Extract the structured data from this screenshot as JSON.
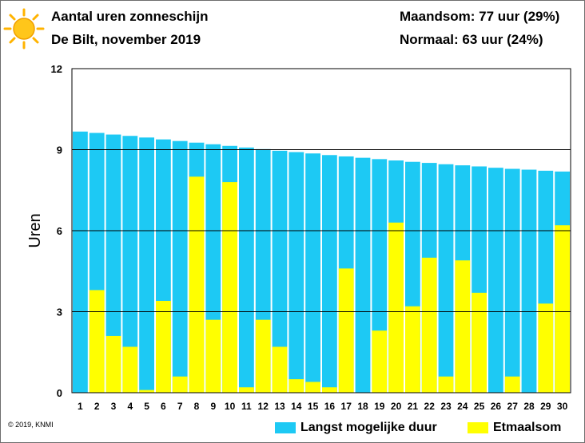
{
  "header": {
    "title": "Aantal uren zonneschijn",
    "subtitle": "De Bilt, november 2019",
    "stat1": "Maandsom: 77 uur (29%)",
    "stat2": "Normaal: 63 uur (24%)"
  },
  "footer": {
    "copyright": "© 2019, KNMI"
  },
  "icons": {
    "sun": "sun-icon"
  },
  "colors": {
    "max": "#1dc9f4",
    "actual": "#ffff00",
    "grid": "#000000"
  },
  "chart_data": {
    "type": "bar",
    "ylabel": "Uren",
    "ylim": [
      0,
      12
    ],
    "yticks": [
      "0",
      "3",
      "6",
      "9",
      "12"
    ],
    "categories": [
      "1",
      "2",
      "3",
      "4",
      "5",
      "6",
      "7",
      "8",
      "9",
      "10",
      "11",
      "12",
      "13",
      "14",
      "15",
      "16",
      "17",
      "18",
      "19",
      "20",
      "21",
      "22",
      "23",
      "24",
      "25",
      "26",
      "27",
      "28",
      "29",
      "30"
    ],
    "series": [
      {
        "name": "Langst mogelijke duur",
        "values": [
          9.67,
          9.62,
          9.56,
          9.51,
          9.45,
          9.38,
          9.32,
          9.26,
          9.2,
          9.14,
          9.08,
          9.02,
          8.96,
          8.91,
          8.86,
          8.8,
          8.75,
          8.7,
          8.65,
          8.6,
          8.55,
          8.51,
          8.46,
          8.42,
          8.38,
          8.33,
          8.29,
          8.26,
          8.22,
          8.19
        ]
      },
      {
        "name": "Etmaalsom",
        "values": [
          0,
          3.8,
          2.1,
          1.7,
          0.1,
          3.4,
          0.6,
          8.0,
          2.7,
          7.8,
          0.2,
          2.7,
          1.7,
          0.5,
          0.4,
          0.2,
          4.6,
          0,
          2.3,
          6.3,
          3.2,
          5.0,
          0.6,
          4.9,
          3.7,
          0,
          0.6,
          0,
          3.3,
          6.2
        ]
      }
    ],
    "grid": true,
    "legend": "bottom-right"
  }
}
